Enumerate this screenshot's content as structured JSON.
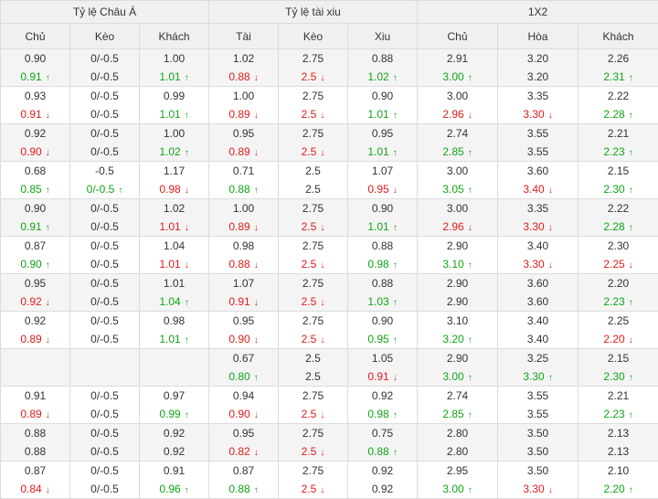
{
  "colors": {
    "up": "#11a516",
    "down": "#e21b1b",
    "header_bg": "#f0f0f0",
    "shade_bg": "#f4f4f4"
  },
  "header": {
    "groups": [
      {
        "label": "Tỷ lệ Châu Á",
        "span": 3
      },
      {
        "label": "Tỷ lệ tài xiu",
        "span": 3
      },
      {
        "label": "1X2",
        "span": 3
      }
    ],
    "columns": [
      "Chủ",
      "Kèo",
      "Khách",
      "Tài",
      "Kèo",
      "Xiu",
      "Chủ",
      "Hòa",
      "Khách"
    ]
  },
  "rows": [
    [
      [
        "0.90",
        "",
        "0.91",
        "up"
      ],
      [
        "0/-0.5",
        "",
        "0/-0.5",
        ""
      ],
      [
        "1.00",
        "",
        "1.01",
        "up"
      ],
      [
        "1.02",
        "",
        "0.88",
        "down"
      ],
      [
        "2.75",
        "",
        "2.5",
        "down"
      ],
      [
        "0.88",
        "",
        "1.02",
        "up"
      ],
      [
        "2.91",
        "",
        "3.00",
        "up"
      ],
      [
        "3.20",
        "",
        "3.20",
        ""
      ],
      [
        "2.26",
        "",
        "2.31",
        "up"
      ]
    ],
    [
      [
        "0.93",
        "",
        "0.91",
        "down"
      ],
      [
        "0/-0.5",
        "",
        "0/-0.5",
        ""
      ],
      [
        "0.99",
        "",
        "1.01",
        "up"
      ],
      [
        "1.00",
        "",
        "0.89",
        "down"
      ],
      [
        "2.75",
        "",
        "2.5",
        "down"
      ],
      [
        "0.90",
        "",
        "1.01",
        "up"
      ],
      [
        "3.00",
        "",
        "2.96",
        "down"
      ],
      [
        "3.35",
        "",
        "3.30",
        "down"
      ],
      [
        "2.22",
        "",
        "2.28",
        "up"
      ]
    ],
    [
      [
        "0.92",
        "",
        "0.90",
        "down"
      ],
      [
        "0/-0.5",
        "",
        "0/-0.5",
        ""
      ],
      [
        "1.00",
        "",
        "1.02",
        "up"
      ],
      [
        "0.95",
        "",
        "0.89",
        "down"
      ],
      [
        "2.75",
        "",
        "2.5",
        "down"
      ],
      [
        "0.95",
        "",
        "1.01",
        "up"
      ],
      [
        "2.74",
        "",
        "2.85",
        "up"
      ],
      [
        "3.55",
        "",
        "3.55",
        ""
      ],
      [
        "2.21",
        "",
        "2.23",
        "up"
      ]
    ],
    [
      [
        "0.68",
        "",
        "0.85",
        "up"
      ],
      [
        "-0.5",
        "",
        "0/-0.5",
        "up"
      ],
      [
        "1.17",
        "",
        "0.98",
        "down"
      ],
      [
        "0.71",
        "",
        "0.88",
        "up"
      ],
      [
        "2.5",
        "",
        "2.5",
        ""
      ],
      [
        "1.07",
        "",
        "0.95",
        "down"
      ],
      [
        "3.00",
        "",
        "3.05",
        "up"
      ],
      [
        "3.60",
        "",
        "3.40",
        "down"
      ],
      [
        "2.15",
        "",
        "2.30",
        "up"
      ]
    ],
    [
      [
        "0.90",
        "",
        "0.91",
        "up"
      ],
      [
        "0/-0.5",
        "",
        "0/-0.5",
        ""
      ],
      [
        "1.02",
        "",
        "1.01",
        "down"
      ],
      [
        "1.00",
        "",
        "0.89",
        "down"
      ],
      [
        "2.75",
        "",
        "2.5",
        "down"
      ],
      [
        "0.90",
        "",
        "1.01",
        "up"
      ],
      [
        "3.00",
        "",
        "2.96",
        "down"
      ],
      [
        "3.35",
        "",
        "3.30",
        "down"
      ],
      [
        "2.22",
        "",
        "2.28",
        "up"
      ]
    ],
    [
      [
        "0.87",
        "",
        "0.90",
        "up"
      ],
      [
        "0/-0.5",
        "",
        "0/-0.5",
        ""
      ],
      [
        "1.04",
        "",
        "1.01",
        "down"
      ],
      [
        "0.98",
        "",
        "0.88",
        "down"
      ],
      [
        "2.75",
        "",
        "2.5",
        "down"
      ],
      [
        "0.88",
        "",
        "0.98",
        "up"
      ],
      [
        "2.90",
        "",
        "3.10",
        "up"
      ],
      [
        "3.40",
        "",
        "3.30",
        "down"
      ],
      [
        "2.30",
        "",
        "2.25",
        "down"
      ]
    ],
    [
      [
        "0.95",
        "",
        "0.92",
        "down"
      ],
      [
        "0/-0.5",
        "",
        "0/-0.5",
        ""
      ],
      [
        "1.01",
        "",
        "1.04",
        "up"
      ],
      [
        "1.07",
        "",
        "0.91",
        "down"
      ],
      [
        "2.75",
        "",
        "2.5",
        "down"
      ],
      [
        "0.88",
        "",
        "1.03",
        "up"
      ],
      [
        "2.90",
        "",
        "2.90",
        ""
      ],
      [
        "3.60",
        "",
        "3.60",
        ""
      ],
      [
        "2.20",
        "",
        "2.23",
        "up"
      ]
    ],
    [
      [
        "0.92",
        "",
        "0.89",
        "down"
      ],
      [
        "0/-0.5",
        "",
        "0/-0.5",
        ""
      ],
      [
        "0.98",
        "",
        "1.01",
        "up"
      ],
      [
        "0.95",
        "",
        "0.90",
        "down"
      ],
      [
        "2.75",
        "",
        "2.5",
        "down"
      ],
      [
        "0.90",
        "",
        "0.95",
        "up"
      ],
      [
        "3.10",
        "",
        "3.20",
        "up"
      ],
      [
        "3.40",
        "",
        "3.40",
        ""
      ],
      [
        "2.25",
        "",
        "2.20",
        "down"
      ]
    ],
    [
      [
        "",
        "",
        "",
        ""
      ],
      [
        "",
        "",
        "",
        ""
      ],
      [
        "",
        "",
        "",
        ""
      ],
      [
        "0.67",
        "",
        "0.80",
        "up"
      ],
      [
        "2.5",
        "",
        "2.5",
        ""
      ],
      [
        "1.05",
        "",
        "0.91",
        "down"
      ],
      [
        "2.90",
        "",
        "3.00",
        "up"
      ],
      [
        "3.25",
        "",
        "3.30",
        "up"
      ],
      [
        "2.15",
        "",
        "2.30",
        "up"
      ]
    ],
    [
      [
        "0.91",
        "",
        "0.89",
        "down"
      ],
      [
        "0/-0.5",
        "",
        "0/-0.5",
        ""
      ],
      [
        "0.97",
        "",
        "0.99",
        "up"
      ],
      [
        "0.94",
        "",
        "0.90",
        "down"
      ],
      [
        "2.75",
        "",
        "2.5",
        "down"
      ],
      [
        "0.92",
        "",
        "0.98",
        "up"
      ],
      [
        "2.74",
        "",
        "2.85",
        "up"
      ],
      [
        "3.55",
        "",
        "3.55",
        ""
      ],
      [
        "2.21",
        "",
        "2.23",
        "up"
      ]
    ],
    [
      [
        "0.88",
        "",
        "0.88",
        ""
      ],
      [
        "0/-0.5",
        "",
        "0/-0.5",
        ""
      ],
      [
        "0.92",
        "",
        "0.92",
        ""
      ],
      [
        "0.95",
        "",
        "0.82",
        "down"
      ],
      [
        "2.75",
        "",
        "2.5",
        "down"
      ],
      [
        "0.75",
        "",
        "0.88",
        "up"
      ],
      [
        "2.80",
        "",
        "2.80",
        ""
      ],
      [
        "3.50",
        "",
        "3.50",
        ""
      ],
      [
        "2.13",
        "",
        "2.13",
        ""
      ]
    ],
    [
      [
        "0.87",
        "",
        "0.84",
        "down"
      ],
      [
        "0/-0.5",
        "",
        "0/-0.5",
        ""
      ],
      [
        "0.91",
        "",
        "0.96",
        "up"
      ],
      [
        "0.87",
        "",
        "0.88",
        "up"
      ],
      [
        "2.75",
        "",
        "2.5",
        "down"
      ],
      [
        "0.92",
        "",
        "0.92",
        ""
      ],
      [
        "2.95",
        "",
        "3.00",
        "up"
      ],
      [
        "3.50",
        "",
        "3.30",
        "down"
      ],
      [
        "2.10",
        "",
        "2.20",
        "up"
      ]
    ]
  ]
}
